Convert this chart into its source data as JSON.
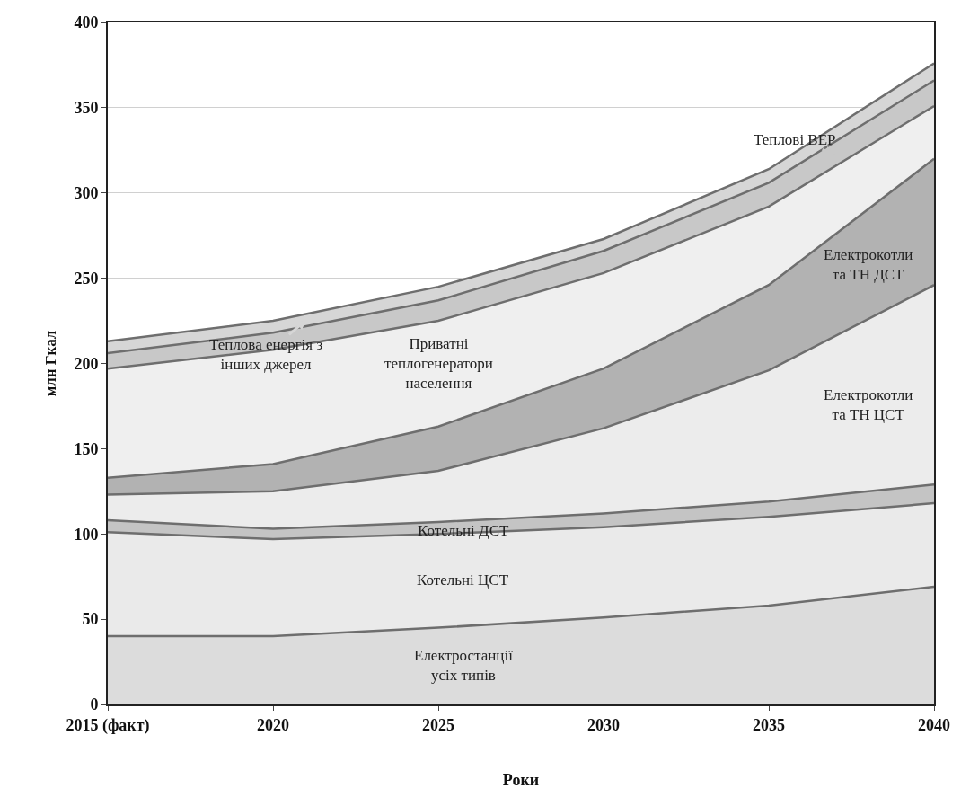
{
  "chart_data": {
    "type": "area",
    "stacked": true,
    "xlabel": "Роки",
    "ylabel": "млн Гкал",
    "categories": [
      "2015 (факт)",
      "2020",
      "2025",
      "2030",
      "2035",
      "2040"
    ],
    "series": [
      {
        "name": "Електростанції\nусіх типів",
        "color": "#dcdcdc",
        "values": [
          40,
          40,
          45,
          51,
          58,
          69
        ]
      },
      {
        "name": "Котельні ЦСТ",
        "color": "#eaeaea",
        "values": [
          61,
          57,
          55,
          53,
          52,
          49
        ]
      },
      {
        "name": "Котельні ДСТ",
        "color": "#c4c4c4",
        "values": [
          7,
          6,
          7,
          8,
          9,
          11
        ]
      },
      {
        "name": "Електрокотли\nта ТН ЦСТ",
        "color": "#ececec",
        "values": [
          15,
          22,
          30,
          50,
          77,
          117
        ]
      },
      {
        "name": "Електрокотли\nта ТН ДСТ",
        "color": "#b2b2b2",
        "values": [
          10,
          16,
          26,
          35,
          50,
          74
        ]
      },
      {
        "name": "Приватні\nтеплогенератори\nнаселення",
        "color": "#efefef",
        "values": [
          64,
          67,
          62,
          56,
          46,
          31
        ]
      },
      {
        "name": "Теплові ВЕР",
        "color": "#c8c8c8",
        "values": [
          9,
          10,
          12,
          13,
          14,
          15
        ]
      },
      {
        "name": "Теплова енергія з\nінших джерел",
        "color": "#d6d6d6",
        "values": [
          7,
          7,
          8,
          7,
          8,
          10
        ]
      }
    ],
    "ylim": [
      0,
      400
    ],
    "yticks": [
      0,
      50,
      100,
      150,
      200,
      250,
      300,
      350,
      400
    ],
    "grid": "y"
  }
}
